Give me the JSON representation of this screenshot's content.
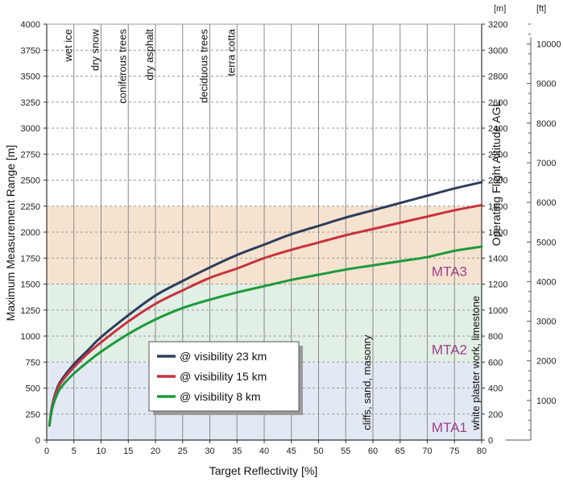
{
  "chart_data": {
    "type": "line",
    "xlabel": "Target Reflectivity [%]",
    "ylabel": "Maximum Measurement Range [m]",
    "y2label": "Operating Flight Altitude AGL",
    "xlim": [
      0,
      80
    ],
    "ylim": [
      0,
      4000
    ],
    "x_ticks": [
      0,
      5,
      10,
      15,
      20,
      25,
      30,
      35,
      40,
      45,
      50,
      55,
      60,
      65,
      70,
      75,
      80
    ],
    "y_ticks": [
      0,
      250,
      500,
      750,
      1000,
      1250,
      1500,
      1750,
      2000,
      2250,
      2500,
      2750,
      3000,
      3250,
      3500,
      3750,
      4000
    ],
    "y2_unit": "[m]",
    "y2_ticks": [
      0,
      200,
      400,
      600,
      800,
      1000,
      1200,
      1400,
      1600,
      1800,
      2000,
      2200,
      2400,
      2600,
      2800,
      3000,
      3200
    ],
    "y3_unit": "[ft]",
    "y3_ticks": [
      0,
      1000,
      2000,
      3000,
      4000,
      5000,
      6000,
      7000,
      8000,
      9000,
      10000
    ],
    "x": [
      0.5,
      1,
      2,
      3,
      5,
      7.5,
      10,
      15,
      20,
      25,
      30,
      35,
      40,
      45,
      50,
      55,
      60,
      65,
      70,
      75,
      80
    ],
    "series": [
      {
        "name": "@ visibility 23 km",
        "color": "#2f3d5c",
        "values": [
          140,
          330,
          510,
          600,
          730,
          860,
          990,
          1200,
          1390,
          1530,
          1660,
          1780,
          1880,
          1980,
          2060,
          2140,
          2210,
          2280,
          2350,
          2420,
          2480
        ]
      },
      {
        "name": "@ visibility 15 km",
        "color": "#c8323f",
        "values": [
          140,
          320,
          490,
          580,
          700,
          830,
          940,
          1140,
          1310,
          1440,
          1560,
          1650,
          1750,
          1830,
          1900,
          1970,
          2030,
          2090,
          2150,
          2210,
          2260
        ]
      },
      {
        "name": "@ visibility 8 km",
        "color": "#1c9a3c",
        "values": [
          140,
          300,
          450,
          530,
          640,
          750,
          850,
          1020,
          1160,
          1270,
          1350,
          1420,
          1480,
          1540,
          1590,
          1640,
          1680,
          1720,
          1760,
          1820,
          1860
        ]
      }
    ],
    "bands": [
      {
        "label": "MTA1",
        "from": 0,
        "to": 750,
        "color": "#e2e9f3"
      },
      {
        "label": "MTA2",
        "from": 750,
        "to": 1500,
        "color": "#e1efe5"
      },
      {
        "label": "MTA3",
        "from": 1500,
        "to": 2250,
        "color": "#f6e3cf"
      }
    ],
    "band_label_color": "#9b3f8d",
    "materials": [
      {
        "label": "wet ice",
        "x": 5
      },
      {
        "label": "dry snow",
        "x": 10
      },
      {
        "label": "coniferous trees",
        "x": 15
      },
      {
        "label": "dry asphalt",
        "x": 20
      },
      {
        "label": "deciduous trees",
        "x": 30
      },
      {
        "label": "terra cotta",
        "x": 35
      },
      {
        "label": "cliffs, sand, masonry",
        "x": 60
      },
      {
        "label": "white plaster work, limestone",
        "x": 80
      }
    ],
    "grid": true,
    "legend_position": "lower-middle"
  }
}
